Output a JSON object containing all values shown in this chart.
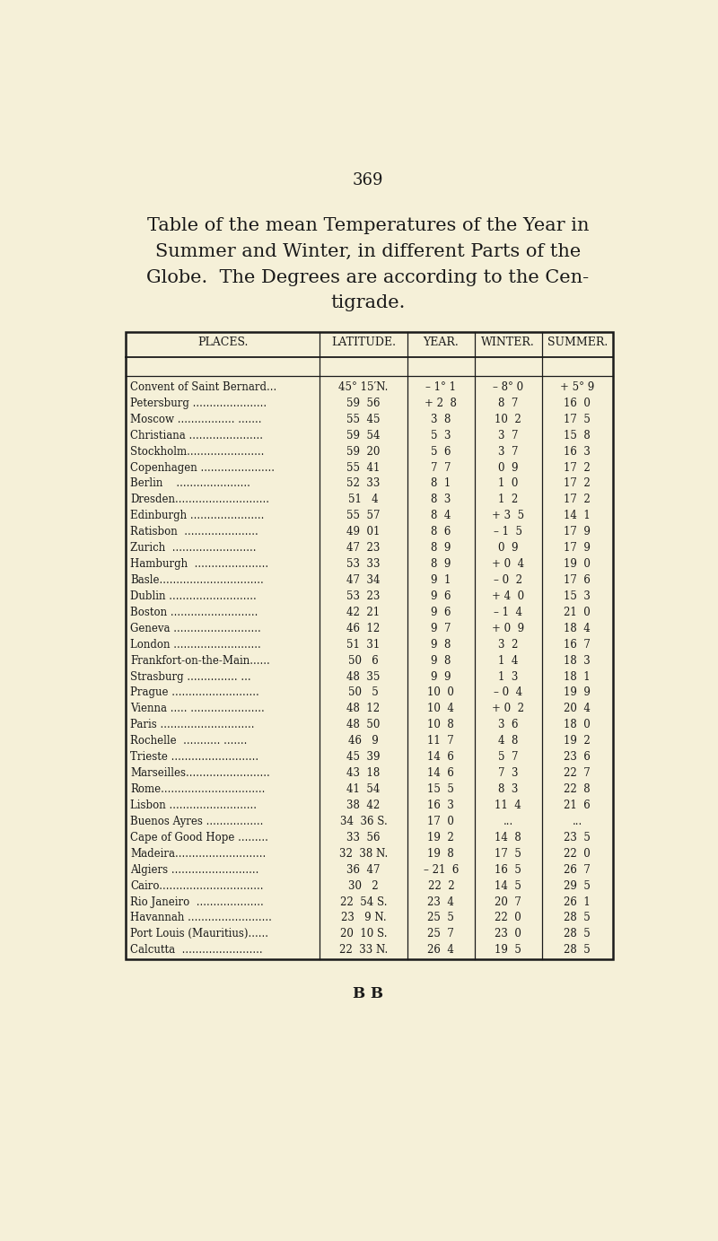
{
  "page_number": "369",
  "footer": "B B",
  "bg_color": "#f5f0d8",
  "col_headers": [
    "PLACES.",
    "LATITUDE.",
    "YEAR.",
    "WINTER.",
    "SUMMER."
  ],
  "rows": [
    [
      "Convent of Saint Bernard...",
      "45° 15′N.",
      "– 1° 1",
      "– 8° 0",
      "+ 5° 9"
    ],
    [
      "Petersburg ......................",
      "59  56",
      "+ 2  8",
      "8  7",
      "16  0"
    ],
    [
      "Moscow ................. .......",
      "55  45",
      "3  8",
      "10  2",
      "17  5"
    ],
    [
      "Christiana ......................",
      "59  54",
      "5  3",
      "3  7",
      "15  8"
    ],
    [
      "Stockholm.......................",
      "59  20",
      "5  6",
      "3  7",
      "16  3"
    ],
    [
      "Copenhagen ......................",
      "55  41",
      "7  7",
      "0  9",
      "17  2"
    ],
    [
      "Berlin    ......................",
      "52  33",
      "8  1",
      "1  0",
      "17  2"
    ],
    [
      "Dresden............................",
      "51   4",
      "8  3",
      "1  2",
      "17  2"
    ],
    [
      "Edinburgh ......................",
      "55  57",
      "8  4",
      "+ 3  5",
      "14  1"
    ],
    [
      "Ratisbon  ......................",
      "49  01",
      "8  6",
      "– 1  5",
      "17  9"
    ],
    [
      "Zurich  .........................",
      "47  23",
      "8  9",
      "0  9",
      "17  9"
    ],
    [
      "Hamburgh  ......................",
      "53  33",
      "8  9",
      "+ 0  4",
      "19  0"
    ],
    [
      "Basle...............................",
      "47  34",
      "9  1",
      "– 0  2",
      "17  6"
    ],
    [
      "Dublin ..........................",
      "53  23",
      "9  6",
      "+ 4  0",
      "15  3"
    ],
    [
      "Boston ..........................",
      "42  21",
      "9  6",
      "– 1  4",
      "21  0"
    ],
    [
      "Geneva ..........................",
      "46  12",
      "9  7",
      "+ 0  9",
      "18  4"
    ],
    [
      "London ..........................",
      "51  31",
      "9  8",
      "3  2",
      "16  7"
    ],
    [
      "Frankfort-on-the-Main......",
      "50   6",
      "9  8",
      "1  4",
      "18  3"
    ],
    [
      "Strasburg ............... ...",
      "48  35",
      "9  9",
      "1  3",
      "18  1"
    ],
    [
      "Prague ..........................",
      "50   5",
      "10  0",
      "– 0  4",
      "19  9"
    ],
    [
      "Vienna ..... ......................",
      "48  12",
      "10  4",
      "+ 0  2",
      "20  4"
    ],
    [
      "Paris ............................",
      "48  50",
      "10  8",
      "3  6",
      "18  0"
    ],
    [
      "Rochelle  ........... .......",
      "46   9",
      "11  7",
      "4  8",
      "19  2"
    ],
    [
      "Trieste ..........................",
      "45  39",
      "14  6",
      "5  7",
      "23  6"
    ],
    [
      "Marseilles.........................",
      "43  18",
      "14  6",
      "7  3",
      "22  7"
    ],
    [
      "Rome...............................",
      "41  54",
      "15  5",
      "8  3",
      "22  8"
    ],
    [
      "Lisbon ..........................",
      "38  42",
      "16  3",
      "11  4",
      "21  6"
    ],
    [
      "Buenos Ayres .................",
      "34  36 S.",
      "17  0",
      "...",
      "..."
    ],
    [
      "Cape of Good Hope .........",
      "33  56",
      "19  2",
      "14  8",
      "23  5"
    ],
    [
      "Madeira...........................",
      "32  38 N.",
      "19  8",
      "17  5",
      "22  0"
    ],
    [
      "Algiers ..........................",
      "36  47",
      "– 21  6",
      "16  5",
      "26  7"
    ],
    [
      "Cairo...............................",
      "30   2",
      "22  2",
      "14  5",
      "29  5"
    ],
    [
      "Rio Janeiro  ....................",
      "22  54 S.",
      "23  4",
      "20  7",
      "26  1"
    ],
    [
      "Havannah .........................",
      "23   9 N.",
      "25  5",
      "22  0",
      "28  5"
    ],
    [
      "Port Louis (Mauritius)......",
      "20  10 S.",
      "25  7",
      "23  0",
      "28  5"
    ],
    [
      "Calcutta  ........................",
      "22  33 N.",
      "26  4",
      "19  5",
      "28  5"
    ]
  ],
  "title_lines": [
    "Table of the mean Temperatures of the Year in",
    "Summer and Winter, in different Parts of the",
    "Globe.  The Degrees are according to the Cen-",
    "tigrade."
  ]
}
